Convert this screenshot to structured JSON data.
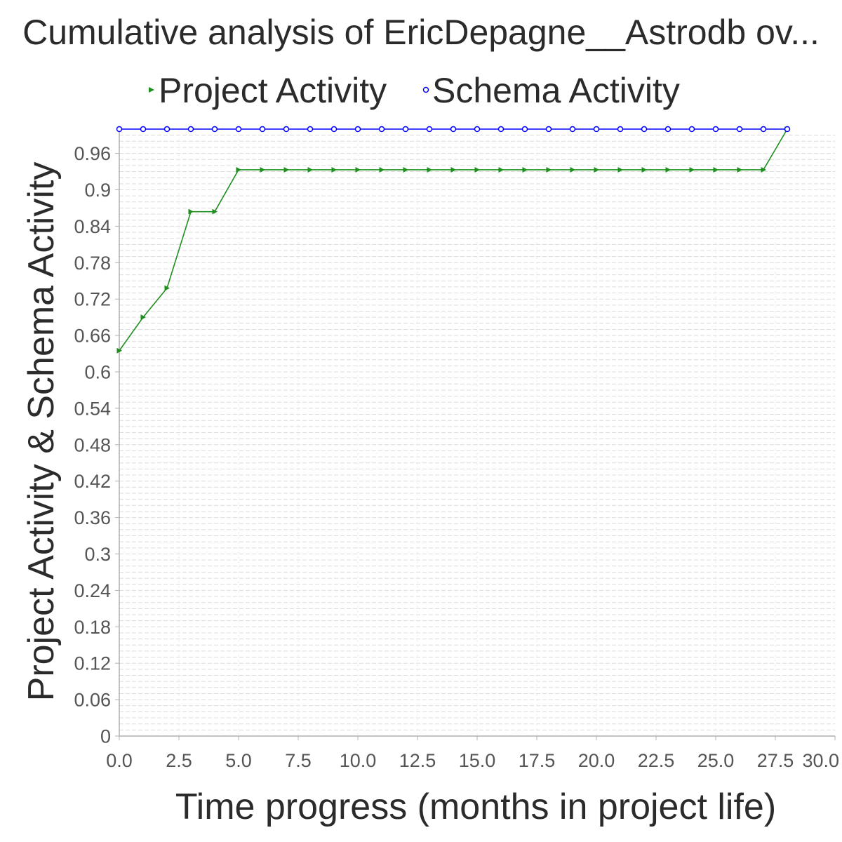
{
  "chart_data": {
    "type": "line",
    "title": "Cumulative analysis of EricDepagne__Astrodb ov...",
    "xlabel": "Time progress (months in project life)",
    "ylabel": "Project Activity & Schema Activity",
    "xlim": [
      0,
      30
    ],
    "ylim": [
      0,
      1.0
    ],
    "x_ticks": [
      0,
      2.5,
      5,
      7.5,
      10,
      12.5,
      15,
      17.5,
      20,
      22.5,
      25,
      27.5,
      30
    ],
    "x_tick_labels": [
      "0.0",
      "2.5",
      "5.0",
      "7.5",
      "10.0",
      "12.5",
      "15.0",
      "17.5",
      "20.0",
      "22.5",
      "25.0",
      "27.5",
      "30.0"
    ],
    "y_ticks": [
      0,
      0.06,
      0.12,
      0.18,
      0.24,
      0.3,
      0.36,
      0.42,
      0.48,
      0.54,
      0.6,
      0.66,
      0.72,
      0.78,
      0.84,
      0.9,
      0.96
    ],
    "y_tick_labels": [
      "0",
      "0.06",
      "0.12",
      "0.18",
      "0.24",
      "0.3",
      "0.36",
      "0.42",
      "0.48",
      "0.54",
      "0.6",
      "0.66",
      "0.72",
      "0.78",
      "0.84",
      "0.9",
      "0.96"
    ],
    "grid": true,
    "legend_position": "top",
    "x": [
      0,
      1,
      2,
      3,
      4,
      5,
      6,
      7,
      8,
      9,
      10,
      11,
      12,
      13,
      14,
      15,
      16,
      17,
      18,
      19,
      20,
      21,
      22,
      23,
      24,
      25,
      26,
      27,
      28
    ],
    "series": [
      {
        "name": "Project Activity",
        "color": "#1f8f1f",
        "marker": "triangle-right",
        "values": [
          0.635,
          0.69,
          0.738,
          0.864,
          0.864,
          0.933,
          0.933,
          0.933,
          0.933,
          0.933,
          0.933,
          0.933,
          0.933,
          0.933,
          0.933,
          0.933,
          0.933,
          0.933,
          0.933,
          0.933,
          0.933,
          0.933,
          0.933,
          0.933,
          0.933,
          0.933,
          0.933,
          0.933,
          1.0
        ]
      },
      {
        "name": "Schema Activity",
        "color": "#0000ff",
        "marker": "circle",
        "values": [
          1.0,
          1.0,
          1.0,
          1.0,
          1.0,
          1.0,
          1.0,
          1.0,
          1.0,
          1.0,
          1.0,
          1.0,
          1.0,
          1.0,
          1.0,
          1.0,
          1.0,
          1.0,
          1.0,
          1.0,
          1.0,
          1.0,
          1.0,
          1.0,
          1.0,
          1.0,
          1.0,
          1.0,
          1.0
        ]
      }
    ]
  }
}
